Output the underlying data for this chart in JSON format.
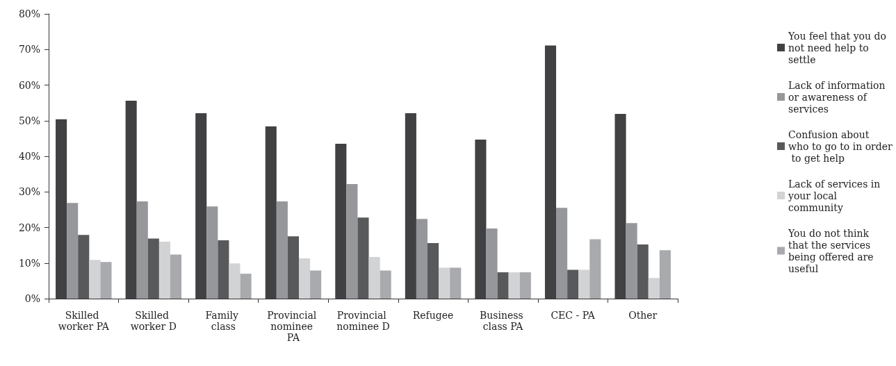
{
  "chart_data": {
    "type": "bar",
    "categories": [
      "Skilled worker PA",
      "Skilled worker D",
      "Family class",
      "Provincial nominee PA",
      "Provincial nominee D",
      "Refugee",
      "Business class PA",
      "CEC - PA",
      "Other"
    ],
    "series": [
      {
        "name": "You feel that you do not need help to settle",
        "color": "#414143",
        "values": [
          50.4,
          55.6,
          52.1,
          48.4,
          43.5,
          52.1,
          44.7,
          71.1,
          51.9
        ]
      },
      {
        "name": "Lack of information or awareness of services",
        "color": "#96979b",
        "values": [
          26.9,
          27.3,
          25.9,
          27.3,
          32.2,
          22.4,
          19.7,
          25.5,
          21.2
        ]
      },
      {
        "name": "Confusion about who to go to in order to get help",
        "color": "#58595b",
        "values": [
          17.9,
          16.9,
          16.4,
          17.5,
          22.8,
          15.6,
          7.4,
          8.1,
          15.2
        ]
      },
      {
        "name": "Lack of services in your local community",
        "color": "#d2d3d5",
        "values": [
          10.9,
          16.0,
          9.9,
          11.3,
          11.7,
          8.7,
          7.4,
          8.1,
          5.8
        ]
      },
      {
        "name": "You do not think that the services being offered are useful",
        "color": "#a9aaad",
        "values": [
          10.3,
          12.4,
          7.0,
          7.9,
          7.9,
          8.7,
          7.4,
          16.7,
          13.6
        ]
      }
    ],
    "ylim": [
      0,
      80
    ],
    "yticks": [
      {
        "value": 0,
        "label": "0%"
      },
      {
        "value": 10,
        "label": "10%"
      },
      {
        "value": 20,
        "label": "20%"
      },
      {
        "value": 30,
        "label": "30%"
      },
      {
        "value": 40,
        "label": "40%"
      },
      {
        "value": 50,
        "label": "50%"
      },
      {
        "value": 60,
        "label": "60%"
      },
      {
        "value": 70,
        "label": "70%"
      },
      {
        "value": 80,
        "label": "80%"
      }
    ],
    "grid": false,
    "legend": "right"
  }
}
